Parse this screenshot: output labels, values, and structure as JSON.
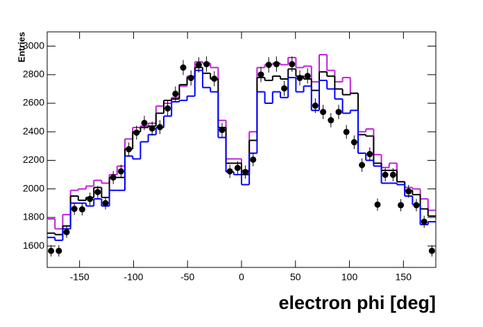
{
  "chart_data": {
    "type": "histogram",
    "x_label": "electron phi [deg]",
    "y_label": "Entries",
    "bins": [
      -180,
      -172.8,
      -165.6,
      -158.4,
      -151.2,
      -144,
      -136.8,
      -129.6,
      -122.4,
      -115.2,
      -108,
      -100.8,
      -93.6,
      -86.4,
      -79.2,
      -72,
      -64.8,
      -57.6,
      -50.4,
      -43.2,
      -36,
      -28.8,
      -21.6,
      -14.4,
      -7.2,
      0,
      7.2,
      14.4,
      21.6,
      28.8,
      36,
      43.2,
      50.4,
      57.6,
      64.8,
      72,
      79.2,
      86.4,
      93.6,
      100.8,
      108,
      115.2,
      122.4,
      129.6,
      136.8,
      144,
      151.2,
      158.4,
      165.6,
      172.8,
      180
    ],
    "xlim": [
      -180,
      180
    ],
    "ylim": [
      1450,
      3100
    ],
    "xticks": [
      -150,
      -100,
      -50,
      0,
      50,
      100,
      150
    ],
    "yticks": [
      1600,
      1800,
      2000,
      2200,
      2400,
      2600,
      2800,
      3000
    ],
    "series": [
      {
        "style": "step",
        "color": "#c020d8",
        "values": [
          1790,
          1720,
          1820,
          1990,
          2000,
          2020,
          2060,
          2040,
          2100,
          2160,
          2350,
          2430,
          2440,
          2460,
          2580,
          2600,
          2640,
          2720,
          2790,
          2890,
          2880,
          2850,
          2480,
          2210,
          2210,
          2130,
          2400,
          2850,
          2870,
          2880,
          2870,
          2920,
          2850,
          2860,
          2750,
          2940,
          2830,
          2750,
          2780,
          2670,
          2400,
          2420,
          2240,
          2150,
          2180,
          2050,
          2010,
          2000,
          1930,
          1850
        ]
      },
      {
        "style": "step",
        "color": "#000000",
        "values": [
          1690,
          1680,
          1740,
          1950,
          1920,
          1940,
          2010,
          1940,
          2080,
          2080,
          2280,
          2400,
          2430,
          2440,
          2530,
          2620,
          2630,
          2730,
          2780,
          2850,
          2810,
          2770,
          2430,
          2180,
          2180,
          2100,
          2340,
          2780,
          2760,
          2790,
          2770,
          2840,
          2790,
          2770,
          2690,
          2820,
          2790,
          2700,
          2660,
          2670,
          2380,
          2370,
          2180,
          2130,
          2130,
          2050,
          1990,
          1960,
          1860,
          1810
        ]
      },
      {
        "style": "step",
        "color": "#0000ff",
        "values": [
          1660,
          1640,
          1720,
          1900,
          1900,
          1880,
          1930,
          1880,
          1990,
          1990,
          2230,
          2210,
          2330,
          2380,
          2430,
          2510,
          2610,
          2620,
          2650,
          2830,
          2710,
          2680,
          2360,
          2120,
          2100,
          2030,
          2250,
          2680,
          2600,
          2680,
          2640,
          2780,
          2680,
          2720,
          2550,
          2760,
          2700,
          2630,
          2530,
          2550,
          2250,
          2200,
          2160,
          2040,
          2040,
          2030,
          1950,
          1890,
          1750,
          1770
        ]
      },
      {
        "style": "markers",
        "color": "#000000",
        "values": [
          1566,
          1566,
          1697,
          1860,
          1857,
          1930,
          1978,
          1900,
          2080,
          2123,
          2278,
          2394,
          2462,
          2423,
          2433,
          2564,
          2666,
          2850,
          2777,
          2869,
          2874,
          2772,
          2413,
          2123,
          2147,
          2118,
          2205,
          2801,
          2869,
          2874,
          2704,
          2874,
          2777,
          2791,
          2583,
          2539,
          2481,
          2539,
          2399,
          2327,
          2167,
          2244,
          1890,
          2099,
          2099,
          1886,
          1983,
          1886,
          1770,
          1566
        ],
        "errors": [
          40,
          40,
          41,
          43,
          43,
          44,
          44,
          44,
          46,
          46,
          48,
          49,
          50,
          49,
          49,
          51,
          52,
          53,
          53,
          54,
          54,
          53,
          49,
          46,
          46,
          46,
          47,
          53,
          54,
          54,
          52,
          54,
          53,
          53,
          51,
          50,
          50,
          50,
          49,
          48,
          47,
          47,
          43,
          46,
          46,
          43,
          45,
          43,
          42,
          40
        ]
      }
    ]
  }
}
